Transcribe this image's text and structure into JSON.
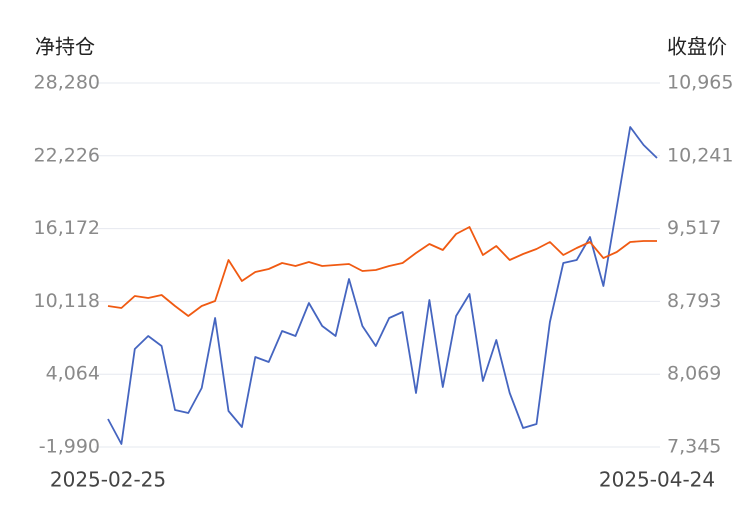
{
  "chart_data": {
    "type": "line",
    "y_label": "净持仓",
    "y2_label": "收盘价",
    "categories": [
      "2025-02-25",
      null,
      null,
      null,
      null,
      null,
      null,
      null,
      null,
      null,
      null,
      null,
      null,
      null,
      null,
      null,
      null,
      null,
      null,
      null,
      null,
      null,
      null,
      null,
      null,
      null,
      null,
      null,
      null,
      null,
      null,
      null,
      null,
      null,
      null,
      null,
      null,
      null,
      null,
      null,
      null,
      "2025-04-24"
    ],
    "ylim": [
      -1990,
      28280
    ],
    "yticks": [
      {
        "value": -1990,
        "label": "-1,990"
      },
      {
        "value": 4064,
        "label": "4,064"
      },
      {
        "value": 10118,
        "label": "10,118"
      },
      {
        "value": 16172,
        "label": "16,172"
      },
      {
        "value": 22226,
        "label": "22,226"
      },
      {
        "value": 28280,
        "label": "28,280"
      }
    ],
    "y2lim": [
      7345,
      10965
    ],
    "y2ticks": [
      {
        "value": 7345,
        "label": "7,345"
      },
      {
        "value": 8069,
        "label": "8,069"
      },
      {
        "value": 8793,
        "label": "8,793"
      },
      {
        "value": 9517,
        "label": "9,517"
      },
      {
        "value": 10241,
        "label": "10,241"
      },
      {
        "value": 10965,
        "label": "10,965"
      }
    ],
    "grid": true,
    "series": [
      {
        "color": "#4565c0",
        "axis": "y",
        "values": [
          338,
          -1741,
          6159,
          7240,
          6409,
          1087,
          837,
          2916,
          8737,
          1004,
          -327,
          5494,
          5078,
          7656,
          7240,
          9985,
          8072,
          7240,
          11981,
          8072,
          6409,
          8737,
          9236,
          2500,
          10234,
          2999,
          8904,
          10733,
          3498,
          6908,
          2500,
          -410,
          -78,
          8405,
          13311,
          13561,
          15473,
          11399,
          17968,
          24621,
          23124,
          22043
        ]
      },
      {
        "color": "#f05a12",
        "axis": "y2",
        "values": [
          8747,
          8727,
          8847,
          8827,
          8857,
          8747,
          8648,
          8747,
          8797,
          9205,
          8996,
          9085,
          9115,
          9175,
          9145,
          9185,
          9145,
          9155,
          9165,
          9095,
          9105,
          9145,
          9175,
          9274,
          9364,
          9304,
          9463,
          9533,
          9254,
          9344,
          9205,
          9264,
          9314,
          9384,
          9254,
          9324,
          9384,
          9224,
          9284,
          9384,
          9394,
          9394
        ]
      }
    ]
  }
}
